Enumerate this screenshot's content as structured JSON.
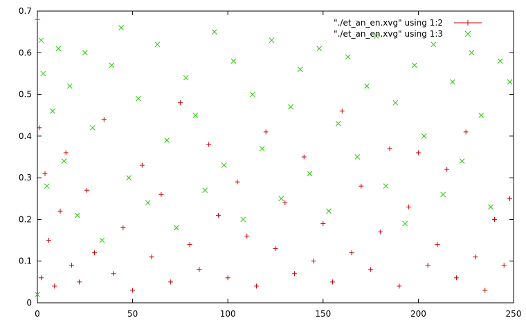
{
  "chart_data": {
    "type": "scatter",
    "title": "",
    "xlabel": "",
    "ylabel": "",
    "xlim": [
      0,
      250
    ],
    "ylim": [
      0,
      0.7
    ],
    "x_ticks": [
      0,
      50,
      100,
      150,
      200,
      250
    ],
    "x_tick_labels": [
      "0",
      "50",
      "100",
      "150",
      "200",
      "250"
    ],
    "y_ticks": [
      0,
      0.1,
      0.2,
      0.3,
      0.4,
      0.5,
      0.6,
      0.7
    ],
    "y_tick_labels": [
      "0",
      "0.1",
      "0.2",
      "0.3",
      "0.4",
      "0.5",
      "0.6",
      "0.7"
    ],
    "grid": false,
    "legend_position": "top-right",
    "series": [
      {
        "name": "\"./et_an_en.xvg\" using 1:2",
        "marker": "plus",
        "color": "#cc0000",
        "x": [
          0,
          1,
          2,
          4,
          6,
          9,
          12,
          15,
          18,
          22,
          26,
          30,
          35,
          40,
          45,
          50,
          55,
          60,
          65,
          70,
          75,
          80,
          85,
          90,
          95,
          100,
          105,
          110,
          115,
          120,
          125,
          130,
          135,
          140,
          145,
          150,
          155,
          160,
          165,
          170,
          175,
          180,
          185,
          190,
          195,
          200,
          205,
          210,
          215,
          220,
          225,
          230,
          235,
          240,
          245,
          248
        ],
        "y": [
          0.68,
          0.42,
          0.06,
          0.31,
          0.15,
          0.04,
          0.22,
          0.36,
          0.09,
          0.05,
          0.27,
          0.12,
          0.44,
          0.07,
          0.18,
          0.03,
          0.33,
          0.11,
          0.26,
          0.05,
          0.48,
          0.14,
          0.08,
          0.38,
          0.21,
          0.06,
          0.29,
          0.16,
          0.04,
          0.41,
          0.13,
          0.24,
          0.07,
          0.35,
          0.1,
          0.19,
          0.05,
          0.46,
          0.12,
          0.28,
          0.08,
          0.17,
          0.37,
          0.04,
          0.23,
          0.36,
          0.09,
          0.14,
          0.32,
          0.06,
          0.41,
          0.11,
          0.03,
          0.2,
          0.09,
          0.25
        ]
      },
      {
        "name": "\"./et_an_en.xvg\" using 1:3",
        "marker": "x",
        "color": "#22cc00",
        "x": [
          0,
          2,
          3,
          5,
          8,
          11,
          14,
          17,
          21,
          25,
          29,
          34,
          39,
          44,
          48,
          53,
          58,
          63,
          68,
          73,
          78,
          83,
          88,
          93,
          98,
          103,
          108,
          113,
          118,
          123,
          128,
          133,
          138,
          143,
          148,
          153,
          158,
          163,
          168,
          173,
          178,
          183,
          188,
          193,
          198,
          203,
          208,
          213,
          218,
          223,
          228,
          233,
          238,
          243,
          248
        ],
        "y": [
          0.02,
          0.63,
          0.55,
          0.28,
          0.46,
          0.61,
          0.34,
          0.52,
          0.21,
          0.6,
          0.42,
          0.15,
          0.57,
          0.66,
          0.3,
          0.49,
          0.24,
          0.62,
          0.39,
          0.18,
          0.54,
          0.45,
          0.27,
          0.65,
          0.33,
          0.58,
          0.2,
          0.5,
          0.37,
          0.63,
          0.25,
          0.47,
          0.56,
          0.31,
          0.61,
          0.22,
          0.43,
          0.59,
          0.35,
          0.52,
          0.64,
          0.28,
          0.48,
          0.19,
          0.57,
          0.4,
          0.62,
          0.26,
          0.53,
          0.34,
          0.6,
          0.45,
          0.23,
          0.58,
          0.53
        ]
      }
    ]
  }
}
